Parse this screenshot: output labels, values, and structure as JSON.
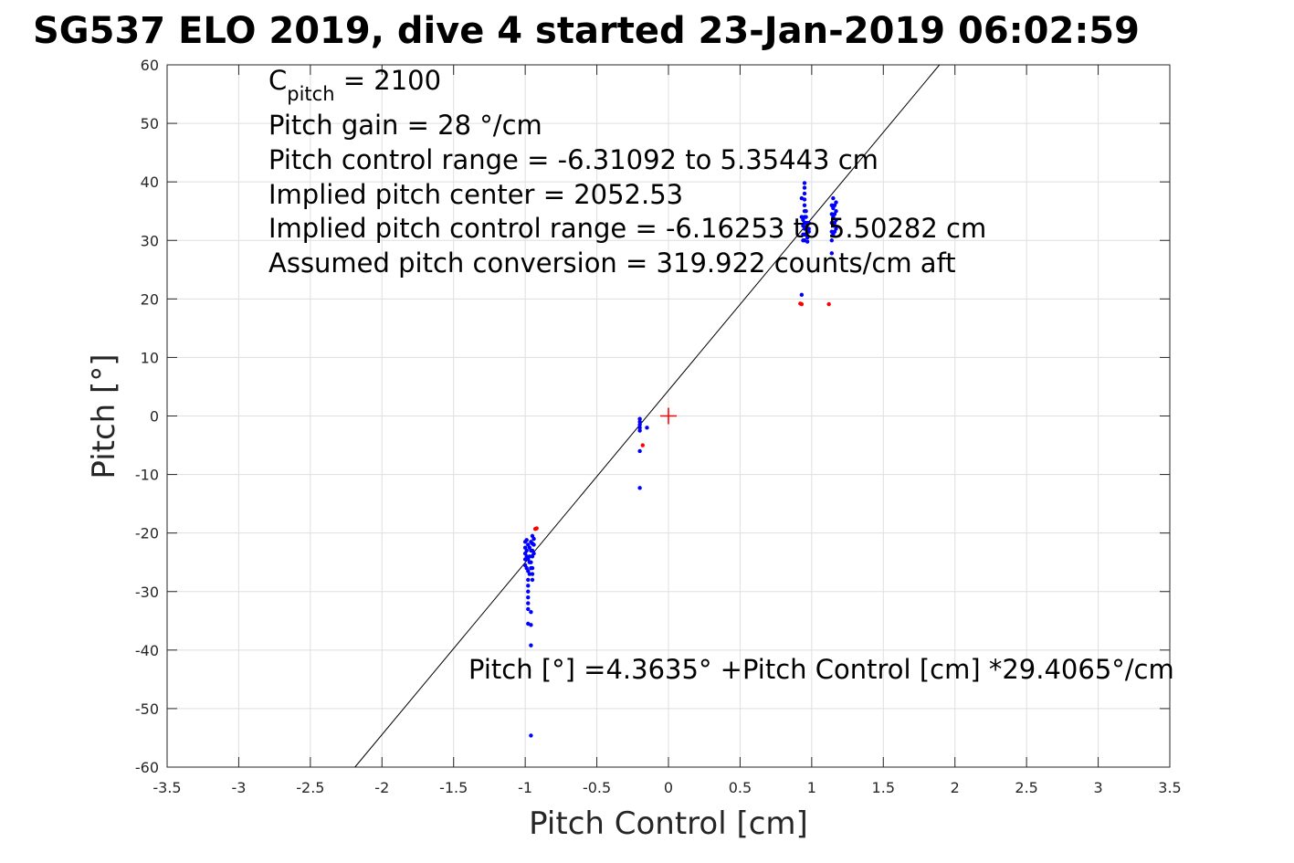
{
  "chart_data": {
    "type": "scatter",
    "title": "SG537 ELO 2019, dive 4 started 23-Jan-2019 06:02:59",
    "xlabel": "Pitch Control [cm]",
    "ylabel": "Pitch [°]",
    "xlim": [
      -3.5,
      3.5
    ],
    "ylim": [
      -60,
      60
    ],
    "x_ticks": [
      "-3.5",
      "-3",
      "-2.5",
      "-2",
      "-1.5",
      "-1",
      "-0.5",
      "0",
      "0.5",
      "1",
      "1.5",
      "2",
      "2.5",
      "3",
      "3.5"
    ],
    "y_ticks": [
      "60",
      "50",
      "40",
      "30",
      "20",
      "10",
      "0",
      "-10",
      "-20",
      "-30",
      "-40",
      "-50",
      "-60"
    ],
    "grid": true,
    "annotations": {
      "c_pitch_symbol": "C",
      "c_pitch_subscript": "pitch",
      "c_pitch_value": " = 2100",
      "pitch_gain": "Pitch gain = 28 °/cm",
      "control_range": "Pitch control range = -6.31092 to 5.35443 cm",
      "implied_center": "Implied pitch center = 2052.53",
      "implied_range": "Implied pitch control range = -6.16253 to 5.50282 cm",
      "conversion": "Assumed pitch conversion = 319.922 counts/cm aft",
      "fit_equation": "Pitch [°] =4.3635° +Pitch Control [cm] *29.4065°/cm"
    },
    "fit_line": {
      "intercept": 4.3635,
      "slope": 29.4065,
      "color": "#000000"
    },
    "origin_marker": {
      "x": 0,
      "y": 0,
      "color": "#ff0000"
    },
    "series": [
      {
        "color": "#0000ff",
        "points": [
          [
            -1.0,
            -21.5
          ],
          [
            -1.0,
            -22.5
          ],
          [
            -1.0,
            -23.5
          ],
          [
            -1.0,
            -24.5
          ],
          [
            -1.0,
            -25.5
          ],
          [
            -0.99,
            -21.2
          ],
          [
            -0.99,
            -23.0
          ],
          [
            -0.99,
            -24.0
          ],
          [
            -0.99,
            -26.0
          ],
          [
            -0.98,
            -22.0
          ],
          [
            -0.98,
            -24.5
          ],
          [
            -0.98,
            -26.5
          ],
          [
            -0.98,
            -28.0
          ],
          [
            -0.98,
            -29.0
          ],
          [
            -0.98,
            -30.0
          ],
          [
            -0.98,
            -31.0
          ],
          [
            -0.98,
            -32.0
          ],
          [
            -0.98,
            -33.0
          ],
          [
            -0.98,
            -35.5
          ],
          [
            -0.97,
            -22.5
          ],
          [
            -0.97,
            -24.0
          ],
          [
            -0.97,
            -25.0
          ],
          [
            -0.97,
            -27.0
          ],
          [
            -0.96,
            -21.5
          ],
          [
            -0.96,
            -23.0
          ],
          [
            -0.96,
            -25.0
          ],
          [
            -0.96,
            -26.0
          ],
          [
            -0.96,
            -33.5
          ],
          [
            -0.96,
            -35.7
          ],
          [
            -0.96,
            -39.2
          ],
          [
            -0.96,
            -54.6
          ],
          [
            -0.95,
            -20.5
          ],
          [
            -0.95,
            -21.8
          ],
          [
            -0.95,
            -23.0
          ],
          [
            -0.95,
            -24.0
          ],
          [
            -0.95,
            -26.0
          ],
          [
            -0.95,
            -27.0
          ],
          [
            -0.95,
            -28.0
          ],
          [
            -0.94,
            -21.0
          ],
          [
            -0.94,
            -22.0
          ],
          [
            -0.94,
            -23.5
          ],
          [
            -0.2,
            -0.5
          ],
          [
            -0.2,
            -1.0
          ],
          [
            -0.2,
            -1.5
          ],
          [
            -0.2,
            -2.0
          ],
          [
            -0.2,
            -2.5
          ],
          [
            -0.2,
            -6.0
          ],
          [
            -0.2,
            -12.3
          ],
          [
            -0.15,
            -2.0
          ],
          [
            0.93,
            20.7
          ],
          [
            0.93,
            37.2
          ],
          [
            0.93,
            34.0
          ],
          [
            0.94,
            30.0
          ],
          [
            0.94,
            31.0
          ],
          [
            0.94,
            32.5
          ],
          [
            0.94,
            33.5
          ],
          [
            0.95,
            30.0
          ],
          [
            0.95,
            31.0
          ],
          [
            0.95,
            32.0
          ],
          [
            0.95,
            33.0
          ],
          [
            0.95,
            34.0
          ],
          [
            0.95,
            35.0
          ],
          [
            0.95,
            36.0
          ],
          [
            0.95,
            37.0
          ],
          [
            0.95,
            38.0
          ],
          [
            0.95,
            39.0
          ],
          [
            0.95,
            39.8
          ],
          [
            0.96,
            31.0
          ],
          [
            0.96,
            32.0
          ],
          [
            0.96,
            33.0
          ],
          [
            0.96,
            34.0
          ],
          [
            0.96,
            35.0
          ],
          [
            0.97,
            30.5
          ],
          [
            0.97,
            32.0
          ],
          [
            0.97,
            33.0
          ],
          [
            0.97,
            29.8
          ],
          [
            0.98,
            32.0
          ],
          [
            0.98,
            33.0
          ],
          [
            0.98,
            31.5
          ],
          [
            1.14,
            27.8
          ],
          [
            1.14,
            30.0
          ],
          [
            1.14,
            31.5
          ],
          [
            1.14,
            33.0
          ],
          [
            1.14,
            34.5
          ],
          [
            1.14,
            36.0
          ],
          [
            1.15,
            31.0
          ],
          [
            1.15,
            32.5
          ],
          [
            1.15,
            34.0
          ],
          [
            1.15,
            35.5
          ],
          [
            1.15,
            37.2
          ],
          [
            1.16,
            31.5
          ],
          [
            1.16,
            33.0
          ],
          [
            1.16,
            34.5
          ],
          [
            1.16,
            36.0
          ],
          [
            1.17,
            32.0
          ],
          [
            1.17,
            33.5
          ],
          [
            1.17,
            35.0
          ],
          [
            1.17,
            36.5
          ]
        ]
      },
      {
        "color": "#ff0000",
        "points": [
          [
            -0.93,
            -19.3
          ],
          [
            -0.92,
            -19.2
          ],
          [
            -0.18,
            -5.0
          ],
          [
            0.92,
            19.2
          ],
          [
            0.93,
            19.1
          ],
          [
            1.12,
            19.1
          ]
        ]
      }
    ]
  }
}
